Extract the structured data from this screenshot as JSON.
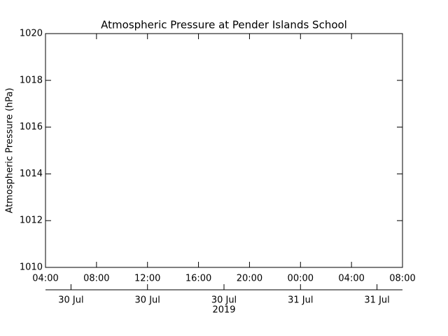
{
  "chart_data": {
    "type": "line",
    "title": "Atmospheric Pressure at Pender Islands School",
    "ylabel": "Atmospheric Pressure (hPa)",
    "x": [],
    "series": [],
    "xlim": [
      "2019-07-30T04:00",
      "2019-07-31T08:00"
    ],
    "xticks": [
      {
        "value": "2019-07-30T04:00",
        "label": "04:00"
      },
      {
        "value": "2019-07-30T08:00",
        "label": "08:00"
      },
      {
        "value": "2019-07-30T12:00",
        "label": "12:00"
      },
      {
        "value": "2019-07-30T16:00",
        "label": "16:00"
      },
      {
        "value": "2019-07-30T20:00",
        "label": "20:00"
      },
      {
        "value": "2019-07-31T00:00",
        "label": "00:00"
      },
      {
        "value": "2019-07-31T04:00",
        "label": "04:00"
      },
      {
        "value": "2019-07-31T08:00",
        "label": "08:00"
      }
    ],
    "x2ticks": [
      {
        "value": "2019-07-30T06:00",
        "label": "30 Jul"
      },
      {
        "value": "2019-07-30T12:00",
        "label": "30 Jul"
      },
      {
        "value": "2019-07-30T18:00",
        "label": "30 Jul"
      },
      {
        "value": "2019-07-31T00:00",
        "label": "31 Jul"
      },
      {
        "value": "2019-07-31T06:00",
        "label": "31 Jul"
      }
    ],
    "x2label": "2019",
    "ylim": [
      1010,
      1020
    ],
    "yticks": [
      1010,
      1012,
      1014,
      1016,
      1018,
      1020
    ]
  }
}
